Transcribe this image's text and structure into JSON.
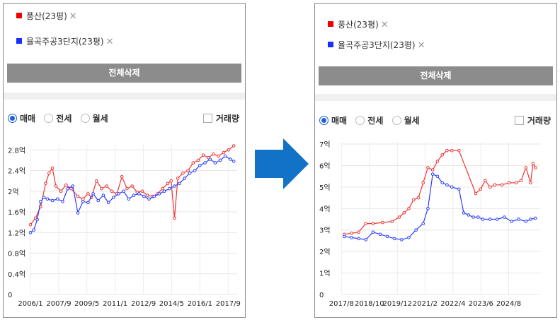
{
  "left": {
    "tags": [
      {
        "label": "풍산(23평)",
        "color": "#ee0000",
        "remove_icon": "close-icon"
      },
      {
        "label": "율곡주공3단지(23평)",
        "color": "#1a2fff",
        "remove_icon": "close-icon"
      }
    ],
    "delete_all_label": "전체삭제",
    "radios": [
      {
        "label": "매매",
        "selected": true
      },
      {
        "label": "전세",
        "selected": false
      },
      {
        "label": "월세",
        "selected": false
      }
    ],
    "volume_label": "거래량",
    "volume_checked": false
  },
  "right": {
    "tags": [
      {
        "label": "풍산(23평)",
        "color": "#ee0000",
        "remove_icon": "close-icon"
      },
      {
        "label": "율곡주공3단지(23평)",
        "color": "#1a2fff",
        "remove_icon": "close-icon"
      }
    ],
    "delete_all_label": "전체삭제",
    "radios": [
      {
        "label": "매매",
        "selected": true
      },
      {
        "label": "전세",
        "selected": false
      },
      {
        "label": "월세",
        "selected": false
      }
    ],
    "volume_label": "거래량",
    "volume_checked": false
  },
  "arrow": {
    "icon": "arrow-right-icon",
    "color": "#1172c8"
  },
  "chart_data": [
    {
      "type": "line",
      "xlim": [
        2006.0,
        2018.2
      ],
      "ylim": [
        0,
        2.9
      ],
      "y_ticks": [
        0,
        0.4,
        0.8,
        1.2,
        1.6,
        2.0,
        2.4,
        2.8
      ],
      "y_tick_labels": [
        "0",
        "0.4억",
        "0.8억",
        "1.2억",
        "1.6억",
        "2억",
        "2.4억",
        "2.8억"
      ],
      "x_ticks": [
        2006.0,
        2007.67,
        2009.33,
        2011.0,
        2012.67,
        2014.33,
        2016.0,
        2017.67
      ],
      "x_tick_labels": [
        "2006/1",
        "2007/9",
        "2009/5",
        "2011/1",
        "2012/9",
        "2014/5",
        "2016/1",
        "2017/9"
      ],
      "grid": true,
      "series": [
        {
          "name": "풍산(23평)",
          "color": "#ee3333",
          "x": [
            2006.0,
            2006.3,
            2006.6,
            2006.9,
            2007.1,
            2007.3,
            2007.5,
            2007.8,
            2008.1,
            2008.4,
            2008.8,
            2009.1,
            2009.4,
            2009.6,
            2009.9,
            2010.2,
            2010.5,
            2010.8,
            2011.1,
            2011.4,
            2011.7,
            2012.0,
            2012.3,
            2012.6,
            2012.9,
            2013.2,
            2013.5,
            2013.8,
            2014.1,
            2014.3,
            2014.5,
            2014.7,
            2015.0,
            2015.3,
            2015.6,
            2015.9,
            2016.2,
            2016.5,
            2016.8,
            2017.1,
            2017.4,
            2017.7,
            2018.0
          ],
          "y": [
            1.35,
            1.48,
            1.7,
            2.15,
            2.35,
            2.45,
            2.1,
            2.0,
            2.12,
            2.05,
            1.9,
            1.85,
            1.95,
            1.88,
            2.2,
            2.05,
            2.1,
            2.0,
            1.95,
            2.28,
            2.05,
            2.1,
            1.98,
            2.0,
            1.92,
            1.9,
            1.95,
            2.05,
            2.15,
            2.2,
            1.48,
            2.25,
            2.35,
            2.4,
            2.55,
            2.6,
            2.7,
            2.65,
            2.72,
            2.68,
            2.75,
            2.8,
            2.88
          ]
        },
        {
          "name": "율곡주공3단지(23평)",
          "color": "#2a3dff",
          "x": [
            2006.0,
            2006.2,
            2006.4,
            2006.6,
            2006.8,
            2007.0,
            2007.3,
            2007.6,
            2007.9,
            2008.2,
            2008.5,
            2008.8,
            2009.1,
            2009.4,
            2009.7,
            2010.0,
            2010.3,
            2010.6,
            2010.9,
            2011.2,
            2011.5,
            2011.8,
            2012.1,
            2012.4,
            2012.7,
            2013.0,
            2013.3,
            2013.6,
            2013.9,
            2014.2,
            2014.5,
            2014.8,
            2015.1,
            2015.4,
            2015.7,
            2016.0,
            2016.3,
            2016.6,
            2016.9,
            2017.2,
            2017.5,
            2017.8,
            2018.0
          ],
          "y": [
            1.2,
            1.25,
            1.45,
            1.8,
            1.88,
            1.85,
            1.82,
            1.85,
            1.8,
            2.05,
            2.1,
            1.58,
            1.8,
            1.78,
            1.95,
            1.82,
            1.92,
            1.78,
            1.88,
            1.95,
            2.0,
            1.85,
            1.92,
            1.95,
            1.9,
            1.85,
            1.9,
            1.95,
            2.0,
            2.05,
            2.1,
            2.15,
            2.25,
            2.35,
            2.4,
            2.5,
            2.55,
            2.62,
            2.55,
            2.6,
            2.68,
            2.62,
            2.58
          ]
        }
      ]
    },
    {
      "type": "line",
      "xlim": [
        2017.6,
        2025.9
      ],
      "ylim": [
        0,
        7.1
      ],
      "y_ticks": [
        0,
        1,
        2,
        3,
        4,
        5,
        6,
        7
      ],
      "y_tick_labels": [
        "0",
        "1억",
        "2억",
        "3억",
        "4억",
        "5억",
        "6억",
        "7억"
      ],
      "x_ticks": [
        2017.58,
        2018.75,
        2019.92,
        2021.08,
        2022.25,
        2023.42,
        2024.58
      ],
      "x_tick_labels": [
        "2017/8",
        "2018/10",
        "2019/12",
        "2021/2",
        "2022/4",
        "2023/6",
        "2024/8"
      ],
      "grid": true,
      "series": [
        {
          "name": "풍산(23평)",
          "color": "#ee3333",
          "x": [
            2017.7,
            2018.0,
            2018.3,
            2018.6,
            2018.9,
            2019.3,
            2019.7,
            2020.0,
            2020.2,
            2020.4,
            2020.6,
            2020.8,
            2021.0,
            2021.2,
            2021.4,
            2021.6,
            2021.8,
            2022.0,
            2022.2,
            2022.5,
            2023.2,
            2023.4,
            2023.6,
            2023.8,
            2024.0,
            2024.3,
            2024.6,
            2024.9,
            2025.1,
            2025.3,
            2025.5,
            2025.6,
            2025.7
          ],
          "y": [
            2.8,
            2.85,
            2.9,
            3.3,
            3.3,
            3.35,
            3.4,
            3.6,
            3.8,
            4.0,
            4.4,
            4.5,
            5.2,
            5.9,
            5.8,
            6.2,
            6.5,
            6.7,
            6.7,
            6.7,
            4.7,
            4.9,
            5.3,
            5.0,
            5.1,
            5.1,
            5.2,
            5.2,
            5.3,
            5.9,
            5.2,
            6.1,
            5.9
          ]
        },
        {
          "name": "율곡주공3단지(23평)",
          "color": "#2a3dff",
          "x": [
            2017.7,
            2018.0,
            2018.3,
            2018.6,
            2018.9,
            2019.2,
            2019.5,
            2019.8,
            2020.1,
            2020.4,
            2020.7,
            2021.0,
            2021.2,
            2021.4,
            2021.6,
            2021.8,
            2022.0,
            2022.2,
            2022.5,
            2022.7,
            2022.9,
            2023.1,
            2023.3,
            2023.5,
            2023.8,
            2024.1,
            2024.4,
            2024.7,
            2025.0,
            2025.3,
            2025.5,
            2025.7
          ],
          "y": [
            2.7,
            2.65,
            2.6,
            2.55,
            2.9,
            2.8,
            2.7,
            2.6,
            2.55,
            2.65,
            3.0,
            3.3,
            4.0,
            5.6,
            5.5,
            5.2,
            5.1,
            5.0,
            4.9,
            3.8,
            3.7,
            3.6,
            3.6,
            3.5,
            3.5,
            3.5,
            3.6,
            3.4,
            3.5,
            3.4,
            3.5,
            3.55
          ]
        }
      ]
    }
  ]
}
